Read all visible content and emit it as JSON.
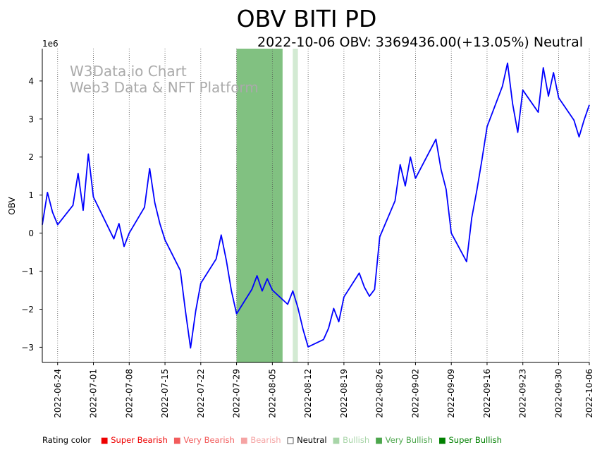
{
  "chart_data": {
    "type": "line",
    "title": "OBV BITI PD",
    "subtitle": "2022-10-06 OBV: 3369436.00(+13.05%) Neutral",
    "watermark": [
      "W3Data.io Chart",
      "Web3 Data & NFT Platform"
    ],
    "ylabel": "OBV",
    "y_offset_text": "1e6",
    "y_scale": 1000000,
    "xlim": [
      "2022-06-21",
      "2022-10-06"
    ],
    "ylim": [
      -3.4,
      4.85
    ],
    "x_ticks": [
      "2022-06-24",
      "2022-07-01",
      "2022-07-08",
      "2022-07-15",
      "2022-07-22",
      "2022-07-29",
      "2022-08-05",
      "2022-08-12",
      "2022-08-19",
      "2022-08-26",
      "2022-09-02",
      "2022-09-09",
      "2022-09-16",
      "2022-09-23",
      "2022-09-30",
      "2022-10-06"
    ],
    "y_ticks": [
      -3,
      -2,
      -1,
      0,
      1,
      2,
      3,
      4
    ],
    "grid": "vertical dotted",
    "line_color": "#0000ff",
    "shaded_regions": [
      {
        "start": "2022-07-29",
        "end": "2022-08-07",
        "color": "#4ca64c",
        "opacity": 0.7,
        "rating": "Very Bullish"
      },
      {
        "start": "2022-08-09",
        "end": "2022-08-10",
        "color": "#a8d5a8",
        "opacity": 0.5,
        "rating": "Bullish"
      }
    ],
    "series": [
      {
        "x": [
          "2022-06-21",
          "2022-06-22",
          "2022-06-23",
          "2022-06-24",
          "2022-06-27",
          "2022-06-28",
          "2022-06-29",
          "2022-06-30",
          "2022-07-01",
          "2022-07-05",
          "2022-07-06",
          "2022-07-07",
          "2022-07-08",
          "2022-07-11",
          "2022-07-12",
          "2022-07-13",
          "2022-07-14",
          "2022-07-15",
          "2022-07-18",
          "2022-07-19",
          "2022-07-20",
          "2022-07-21",
          "2022-07-22",
          "2022-07-25",
          "2022-07-26",
          "2022-07-27",
          "2022-07-28",
          "2022-07-29",
          "2022-08-01",
          "2022-08-02",
          "2022-08-03",
          "2022-08-04",
          "2022-08-05",
          "2022-08-08",
          "2022-08-09",
          "2022-08-10",
          "2022-08-11",
          "2022-08-12",
          "2022-08-15",
          "2022-08-16",
          "2022-08-17",
          "2022-08-18",
          "2022-08-19",
          "2022-08-22",
          "2022-08-23",
          "2022-08-24",
          "2022-08-25",
          "2022-08-26",
          "2022-08-29",
          "2022-08-30",
          "2022-08-31",
          "2022-09-01",
          "2022-09-02",
          "2022-09-06",
          "2022-09-07",
          "2022-09-08",
          "2022-09-09",
          "2022-09-12",
          "2022-09-13",
          "2022-09-14",
          "2022-09-15",
          "2022-09-16",
          "2022-09-19",
          "2022-09-20",
          "2022-09-21",
          "2022-09-22",
          "2022-09-23",
          "2022-09-26",
          "2022-09-27",
          "2022-09-28",
          "2022-09-29",
          "2022-09-30",
          "2022-10-03",
          "2022-10-04",
          "2022-10-05",
          "2022-10-06"
        ],
        "y": [
          0.22,
          1.07,
          0.55,
          0.22,
          0.73,
          1.57,
          0.6,
          2.08,
          0.95,
          -0.15,
          0.25,
          -0.35,
          0.0,
          0.68,
          1.7,
          0.8,
          0.25,
          -0.18,
          -0.98,
          -2.05,
          -3.02,
          -2.05,
          -1.32,
          -0.68,
          -0.05,
          -0.72,
          -1.52,
          -2.12,
          -1.48,
          -1.12,
          -1.52,
          -1.2,
          -1.5,
          -1.87,
          -1.52,
          -1.96,
          -2.53,
          -2.99,
          -2.8,
          -2.5,
          -1.98,
          -2.33,
          -1.68,
          -1.05,
          -1.42,
          -1.66,
          -1.48,
          -0.1,
          0.85,
          1.8,
          1.24,
          2.0,
          1.44,
          2.47,
          1.67,
          1.15,
          0.0,
          -0.75,
          0.4,
          1.12,
          1.93,
          2.8,
          3.86,
          4.47,
          3.4,
          2.65,
          3.76,
          3.18,
          4.35,
          3.6,
          4.22,
          3.56,
          2.97,
          2.53,
          2.98,
          3.37
        ]
      }
    ]
  },
  "legend": {
    "title": "Rating color",
    "items": [
      {
        "label": "Super Bearish",
        "color": "#ee0000"
      },
      {
        "label": "Very Bearish",
        "color": "#f25c5c"
      },
      {
        "label": "Bearish",
        "color": "#f5a3a3"
      },
      {
        "label": "Neutral",
        "color": "#000000"
      },
      {
        "label": "Bullish",
        "color": "#a8d5a8"
      },
      {
        "label": "Very Bullish",
        "color": "#4ca64c"
      },
      {
        "label": "Super Bullish",
        "color": "#008000"
      }
    ]
  }
}
